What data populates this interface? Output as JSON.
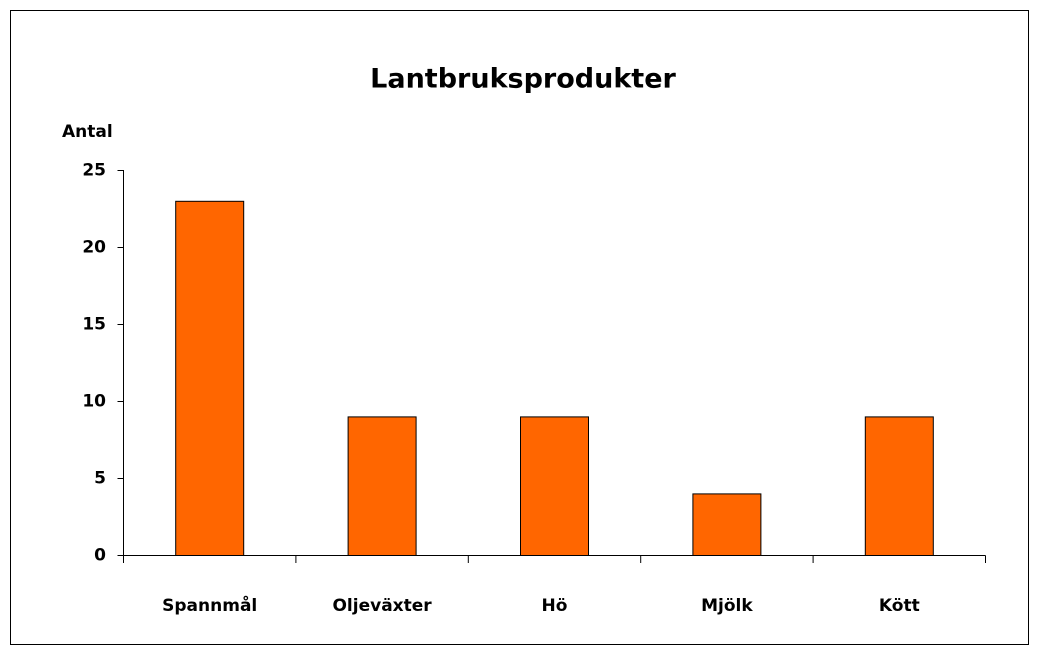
{
  "chart_data": {
    "type": "bar",
    "title": "Lantbruksprodukter",
    "y_label": "Antal",
    "categories": [
      "Spannmål",
      "Oljeväxter",
      "Hö",
      "Mjölk",
      "Kött"
    ],
    "values": [
      23,
      9,
      9,
      4,
      9
    ],
    "color": "#ff6600",
    "ylim": [
      0,
      25
    ],
    "yticks": [
      0,
      5,
      10,
      15,
      20,
      25
    ],
    "grid": false
  }
}
